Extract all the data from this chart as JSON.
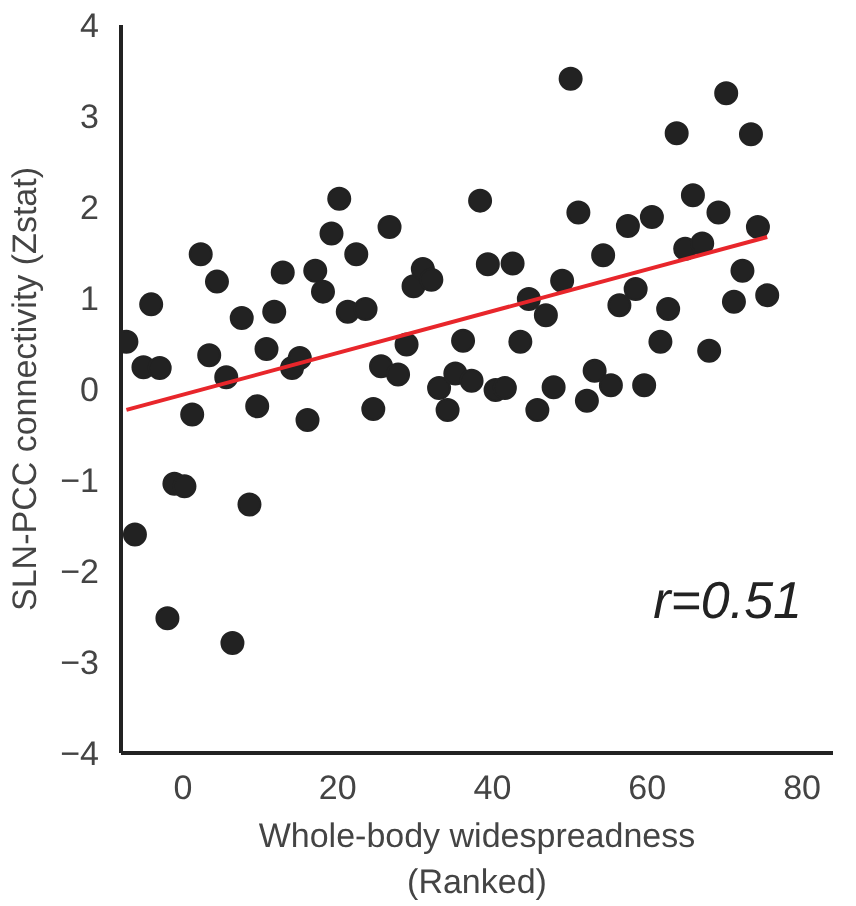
{
  "chart_data": {
    "type": "scatter",
    "xlabel": "Whole-body widespreadness\n(Ranked)",
    "ylabel": "SLN-PCC connectivity (Zstat)",
    "xlim": [
      -8,
      84
    ],
    "ylim": [
      -4,
      4
    ],
    "xticks": [
      0,
      20,
      40,
      60,
      80
    ],
    "yticks": [
      -4,
      -3,
      -2,
      -1,
      0,
      1,
      2,
      3,
      4
    ],
    "grid": false,
    "annotations": [
      "r=0.51"
    ],
    "series": [
      {
        "marker": "circle",
        "color": "#222222",
        "x": [
          -7.3,
          -4.1,
          -5.1,
          -3.0,
          1.2,
          2.3,
          3.4,
          4.4,
          5.6,
          7.6,
          9.6,
          10.8,
          11.8,
          12.9,
          14.1,
          15.1,
          16.1,
          17.1,
          18.1,
          19.2,
          20.2,
          22.4,
          21.3,
          23.6,
          24.6,
          25.6,
          27.8,
          26.7,
          28.9,
          29.8,
          31.0,
          32.1,
          33.1,
          34.2,
          35.2,
          37.3,
          36.2,
          38.4,
          39.4,
          42.6,
          50.1,
          70.2,
          63.8,
          73.4,
          65.9,
          51.1,
          57.5,
          60.6,
          69.2,
          74.3,
          54.3,
          64.9,
          67.1,
          72.3,
          49.0,
          44.7,
          46.9,
          58.5,
          56.4,
          62.7,
          71.2,
          75.5,
          43.6,
          61.7,
          68.0,
          53.2,
          55.3,
          59.6,
          40.4,
          41.6,
          47.9,
          45.8,
          52.2,
          -1.1,
          0.2,
          8.6,
          -6.2,
          -2.0,
          6.4
        ],
        "values": [
          0.52,
          0.93,
          0.24,
          0.23,
          -0.28,
          1.48,
          0.37,
          1.18,
          0.13,
          0.78,
          -0.19,
          0.44,
          0.85,
          1.28,
          0.23,
          0.34,
          -0.34,
          1.3,
          1.07,
          1.71,
          2.09,
          1.48,
          0.85,
          0.88,
          -0.22,
          0.25,
          0.16,
          1.78,
          0.49,
          1.13,
          1.32,
          1.2,
          0.01,
          -0.23,
          0.17,
          0.09,
          0.53,
          2.07,
          1.37,
          1.38,
          3.41,
          3.25,
          2.81,
          2.8,
          2.13,
          1.94,
          1.79,
          1.89,
          1.94,
          1.78,
          1.47,
          1.54,
          1.6,
          1.3,
          1.19,
          0.99,
          0.81,
          1.1,
          0.92,
          0.88,
          0.96,
          1.03,
          0.52,
          0.52,
          0.42,
          0.2,
          0.04,
          0.04,
          -0.01,
          0.01,
          0.02,
          -0.23,
          -0.13,
          -1.04,
          -1.07,
          -1.27,
          -1.6,
          -2.52,
          -2.79
        ]
      },
      {
        "type": "line",
        "color": "#e8262b",
        "x": [
          -7.3,
          75.5
        ],
        "values": [
          -0.23,
          1.67
        ]
      }
    ]
  }
}
